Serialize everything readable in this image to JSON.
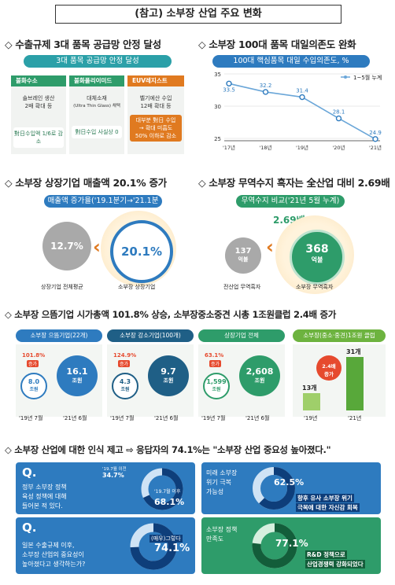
{
  "title": "(참고) 소부장 산업 주요 변화",
  "sections": {
    "s1": "◇ 수출규제 3대 품목 공급망 안정 달성",
    "s2": "◇ 소부장 100대 품목 대일의존도 완화",
    "s3": "◇ 소부장 상장기업 매출액 20.1% 증가",
    "s4": "◇ 소부장 무역수지 흑자는 全산업 대비 2.69배",
    "s5": "◇ 소부장 으뜸기업 시가총액 101.8% 상승, 소부장중소중견 시총 1조원클럽 2.4배 증가",
    "s6": "◇ 소부장 산업에 대한 인식 제고 ⇨ 응답자의 74.1%는 \"소부장 산업 중요성 높아졌다.\""
  },
  "supply": {
    "pill": "3대 품목 공급망 안정 달성",
    "items": [
      {
        "name": "불화수소",
        "desc1": "솔브레인 생산",
        "desc2": "2배 확대 등",
        "box": "對日수입액 1/6로 감소",
        "color": "#2e9c6a"
      },
      {
        "name": "불화폴리이미드",
        "desc1": "대체소재",
        "desc2": "(Ultra Thin Glass) 채택",
        "box": "對日수입 사실상 0",
        "color": "#2e9c6a"
      },
      {
        "name": "EUV레지스트",
        "desc1": "벨기에산 수입",
        "desc2": "12배 확대 등",
        "box1": "대부분 對日 수입",
        "box2": "→ 확대 미흡도",
        "box3": "50% 이하로 감소",
        "color": "#e07a20"
      }
    ]
  },
  "dependency": {
    "pill": "100대 핵심품목 대일 수입의존도, %",
    "legend": "1~5월 누계",
    "years": [
      "'17년",
      "'18년",
      "'19년",
      "'20년",
      "'21년"
    ],
    "yticks": [
      "35",
      "30",
      "25"
    ]
  },
  "sales": {
    "pill": "매출액 증가율('19.1분기→'21.1분기)",
    "left_value": "12.7%",
    "right_value": "20.1%",
    "left_label": "상장기업 전체평균",
    "right_label": "소부장 상장기업"
  },
  "trade": {
    "pill": "무역수지 비교('21년 5월 누계)",
    "ratio": "2.69배",
    "left_value": "137",
    "left_unit": "억불",
    "right_value": "368",
    "right_unit": "억불",
    "left_label": "전산업 무역흑자",
    "right_label": "소부장 무역흑자"
  },
  "marketcap": {
    "groups": [
      {
        "pill": "소부장 으뜸기업(22개)",
        "before": "8.0",
        "before_unit": "조원",
        "after": "16.1",
        "after_unit": "조원",
        "rate": "101.8%",
        "rate2": "증가",
        "color": "#2e7bbf",
        "x1": "'19년 7월",
        "x2": "'21년 6월"
      },
      {
        "pill": "소부장 강소기업(100개)",
        "before": "4.3",
        "before_unit": "조원",
        "after": "9.7",
        "after_unit": "조원",
        "rate": "124.9%",
        "rate2": "증가",
        "color": "#1f5f86",
        "x1": "'19년 7월",
        "x2": "'21년 6월"
      },
      {
        "pill": "상장기업 전체",
        "before": "1,599",
        "before_unit": "조원",
        "after": "2,608",
        "after_unit": "조원",
        "rate": "63.1%",
        "rate2": "증가",
        "color": "#2e9c6a",
        "x1": "'19년 7월",
        "x2": "'21년 6월"
      }
    ],
    "club": {
      "pill": "소부장(중소·중견)1조원 클럽",
      "before": "13개",
      "after": "31개",
      "rate": "2.4배",
      "rate2": "증가",
      "x1": "'19년",
      "x2": "'21년"
    }
  },
  "survey": {
    "q1": {
      "q": "Q.",
      "text1": "정부 소부장 정책",
      "text2": "육성 정책에 대해",
      "text3": "들어본 적 있다.",
      "before_label": "'19.7월 이전",
      "before": "34.7%",
      "after_label": "'19.7월 이후",
      "after": "68.1%"
    },
    "q2": {
      "q": "Q.",
      "text1": "일본 수출규제 이후,",
      "text2": "소부장 산업의 중요성이",
      "text3": "높아졌다고 생각하는가?",
      "sub": "(매우)그렇다",
      "value": "74.1%"
    },
    "q3": {
      "label1": "미래 소부장",
      "label2": "위기 극복",
      "label3": "가능성",
      "value": "62.5%",
      "note1": "향후 유사 소부장 위기",
      "note2": "극복에 대한 자신감 회복"
    },
    "q4": {
      "label1": "소부장 정책",
      "label2": "만족도",
      "value": "77.1%",
      "note1": "R&D 정책으로",
      "note2": "산업경쟁력 강화되었다"
    }
  },
  "chart_data": {
    "type": "line",
    "title": "100대 핵심품목 대일 수입의존도, %",
    "categories": [
      "'17년",
      "'18년",
      "'19년",
      "'20년",
      "'21년"
    ],
    "series": [
      {
        "name": "1~5월 누계",
        "values": [
          33.5,
          32.2,
          31.4,
          28.1,
          24.9
        ]
      }
    ],
    "ylim": [
      25,
      35
    ],
    "yticks": [
      25,
      30,
      35
    ],
    "grid": true,
    "legend": "top-right"
  }
}
